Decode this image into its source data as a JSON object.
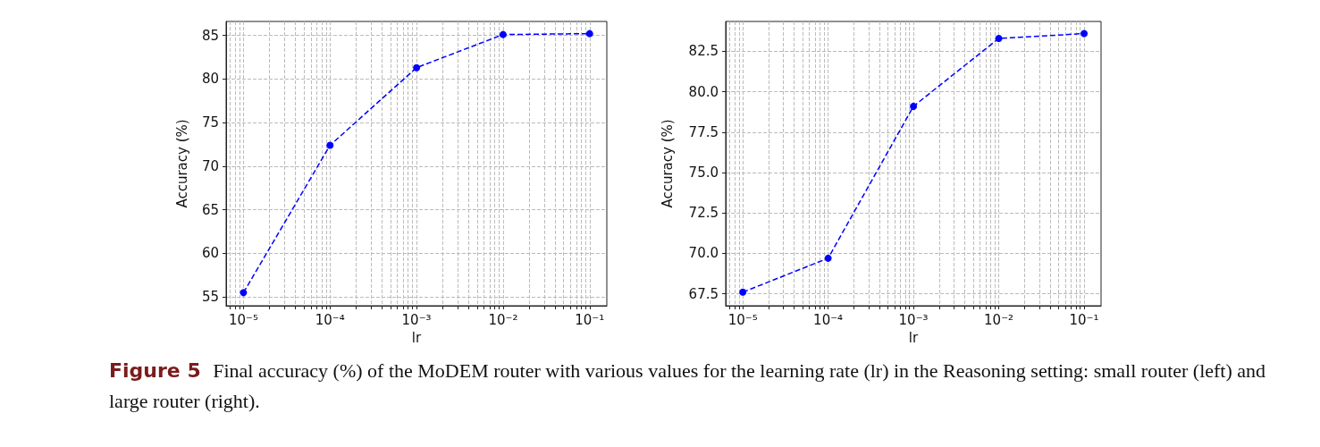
{
  "chart_data": [
    {
      "type": "line",
      "xlabel": "lr",
      "ylabel": "Accuracy (%)",
      "x": [
        1e-05,
        0.0001,
        0.001,
        0.01,
        0.1
      ],
      "series": [
        {
          "color": "#0000ff",
          "values": [
            55.5,
            72.4,
            81.3,
            85.1,
            85.2
          ]
        }
      ],
      "log": "x",
      "xlim": [
        6.3e-06,
        0.158
      ],
      "xticks": [
        {
          "value": 7e-06,
          "label": null
        },
        {
          "value": 8e-06,
          "label": null
        },
        {
          "value": 9e-06,
          "label": null
        },
        {
          "value": 1e-05,
          "label": "10⁻⁵"
        },
        {
          "value": 2e-05,
          "label": null
        },
        {
          "value": 3e-05,
          "label": null
        },
        {
          "value": 4e-05,
          "label": null
        },
        {
          "value": 5e-05,
          "label": null
        },
        {
          "value": 6e-05,
          "label": null
        },
        {
          "value": 7e-05,
          "label": null
        },
        {
          "value": 8e-05,
          "label": null
        },
        {
          "value": 9e-05,
          "label": null
        },
        {
          "value": 0.0001,
          "label": "10⁻⁴"
        },
        {
          "value": 0.0002,
          "label": null
        },
        {
          "value": 0.0003,
          "label": null
        },
        {
          "value": 0.0004,
          "label": null
        },
        {
          "value": 0.0005,
          "label": null
        },
        {
          "value": 0.0006,
          "label": null
        },
        {
          "value": 0.0007,
          "label": null
        },
        {
          "value": 0.0008,
          "label": null
        },
        {
          "value": 0.0009,
          "label": null
        },
        {
          "value": 0.001,
          "label": "10⁻³"
        },
        {
          "value": 0.002,
          "label": null
        },
        {
          "value": 0.003,
          "label": null
        },
        {
          "value": 0.004,
          "label": null
        },
        {
          "value": 0.005,
          "label": null
        },
        {
          "value": 0.006,
          "label": null
        },
        {
          "value": 0.007,
          "label": null
        },
        {
          "value": 0.008,
          "label": null
        },
        {
          "value": 0.009,
          "label": null
        },
        {
          "value": 0.01,
          "label": "10⁻²"
        },
        {
          "value": 0.02,
          "label": null
        },
        {
          "value": 0.03,
          "label": null
        },
        {
          "value": 0.04,
          "label": null
        },
        {
          "value": 0.05,
          "label": null
        },
        {
          "value": 0.06,
          "label": null
        },
        {
          "value": 0.07,
          "label": null
        },
        {
          "value": 0.08,
          "label": null
        },
        {
          "value": 0.09,
          "label": null
        },
        {
          "value": 0.1,
          "label": "10⁻¹"
        }
      ],
      "ylim": [
        54,
        86.6
      ],
      "yticks": [
        55,
        60,
        65,
        70,
        75,
        80,
        85
      ],
      "grid": true,
      "marker": "circle",
      "line_style": "dashed",
      "annotations": [
        "Figure 5",
        "Final accuracy (%) of the MoDEM router with various values for the learning rate (lr) in the Reasoning setting: small router (left) and large router (right)."
      ]
    },
    {
      "type": "line",
      "xlabel": "lr",
      "ylabel": "Accuracy (%)",
      "x": [
        1e-05,
        0.0001,
        0.001,
        0.01,
        0.1
      ],
      "series": [
        {
          "color": "#0000ff",
          "values": [
            67.6,
            69.7,
            79.1,
            83.3,
            83.6
          ]
        }
      ],
      "log": "x",
      "xlim": [
        6.3e-06,
        0.158
      ],
      "xticks": [
        {
          "value": 7e-06,
          "label": null
        },
        {
          "value": 8e-06,
          "label": null
        },
        {
          "value": 9e-06,
          "label": null
        },
        {
          "value": 1e-05,
          "label": "10⁻⁵"
        },
        {
          "value": 2e-05,
          "label": null
        },
        {
          "value": 3e-05,
          "label": null
        },
        {
          "value": 4e-05,
          "label": null
        },
        {
          "value": 5e-05,
          "label": null
        },
        {
          "value": 6e-05,
          "label": null
        },
        {
          "value": 7e-05,
          "label": null
        },
        {
          "value": 8e-05,
          "label": null
        },
        {
          "value": 9e-05,
          "label": null
        },
        {
          "value": 0.0001,
          "label": "10⁻⁴"
        },
        {
          "value": 0.0002,
          "label": null
        },
        {
          "value": 0.0003,
          "label": null
        },
        {
          "value": 0.0004,
          "label": null
        },
        {
          "value": 0.0005,
          "label": null
        },
        {
          "value": 0.0006,
          "label": null
        },
        {
          "value": 0.0007,
          "label": null
        },
        {
          "value": 0.0008,
          "label": null
        },
        {
          "value": 0.0009,
          "label": null
        },
        {
          "value": 0.001,
          "label": "10⁻³"
        },
        {
          "value": 0.002,
          "label": null
        },
        {
          "value": 0.003,
          "label": null
        },
        {
          "value": 0.004,
          "label": null
        },
        {
          "value": 0.005,
          "label": null
        },
        {
          "value": 0.006,
          "label": null
        },
        {
          "value": 0.007,
          "label": null
        },
        {
          "value": 0.008,
          "label": null
        },
        {
          "value": 0.009,
          "label": null
        },
        {
          "value": 0.01,
          "label": "10⁻²"
        },
        {
          "value": 0.02,
          "label": null
        },
        {
          "value": 0.03,
          "label": null
        },
        {
          "value": 0.04,
          "label": null
        },
        {
          "value": 0.05,
          "label": null
        },
        {
          "value": 0.06,
          "label": null
        },
        {
          "value": 0.07,
          "label": null
        },
        {
          "value": 0.08,
          "label": null
        },
        {
          "value": 0.09,
          "label": null
        },
        {
          "value": 0.1,
          "label": "10⁻¹"
        }
      ],
      "ylim": [
        66.76,
        84.35
      ],
      "yticks": [
        67.5,
        {
          "value": 70,
          "label": "70.0"
        },
        72.5,
        {
          "value": 75,
          "label": "75.0"
        },
        77.5,
        {
          "value": 80,
          "label": "80.0"
        },
        82.5
      ],
      "grid": true,
      "marker": "circle",
      "line_style": "dashed"
    }
  ]
}
